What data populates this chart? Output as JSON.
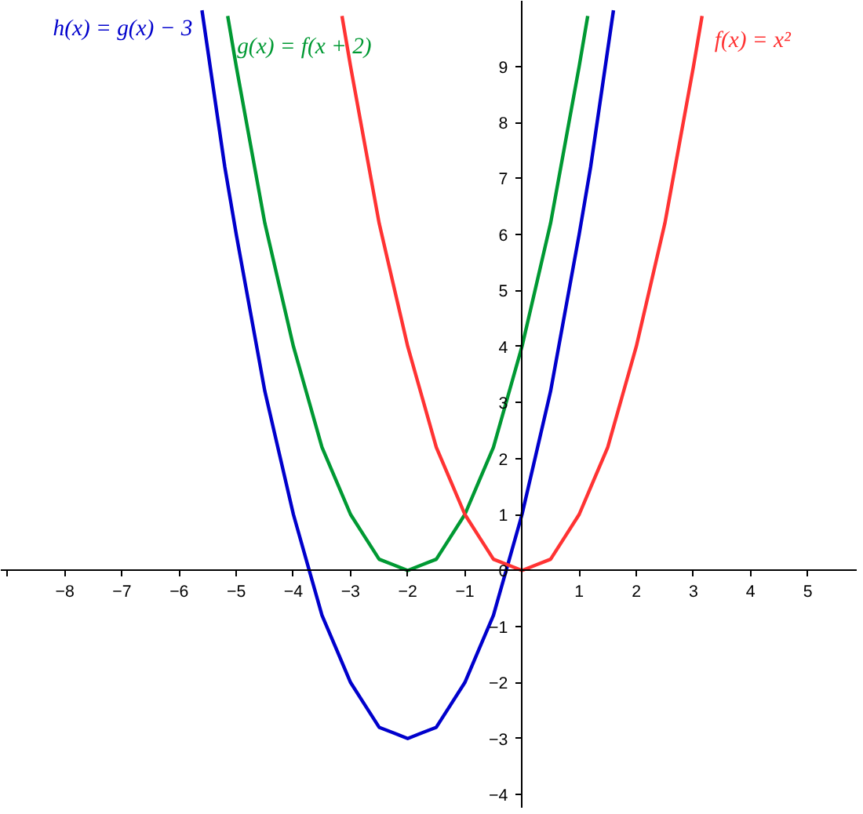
{
  "chart_data": {
    "type": "line",
    "xlim": [
      -9.12,
      5.87
    ],
    "ylim": [
      -4.25,
      10.17
    ],
    "xticks": [
      {
        "value": -9,
        "label": null
      },
      -8,
      -7,
      -6,
      -5,
      -4,
      -3,
      -2,
      -1,
      1,
      2,
      3,
      4,
      5
    ],
    "yticks": [
      -4,
      -3,
      -2,
      -1,
      0,
      1,
      2,
      3,
      4,
      5,
      6,
      7,
      8,
      9
    ],
    "grid": false,
    "marker": "none",
    "line_style": "solid",
    "series": [
      {
        "name": "h(x) = g(x) − 3",
        "color": "#0000cc",
        "x": [
          -5.6,
          -5.4,
          -5.2,
          -5,
          -4.75,
          -4.5,
          -4.25,
          -4,
          -3.75,
          -3.5,
          -3.25,
          -3,
          -2.75,
          -2.5,
          -2.25,
          -2,
          -1.75,
          -1.5,
          -1.25,
          -1,
          -0.75,
          -0.5,
          -0.25,
          0,
          0.25,
          0.5,
          0.75,
          1,
          1.2,
          1.4,
          1.6
        ],
        "values": [
          10,
          8.6,
          7.2,
          6,
          4.6,
          3.2,
          2.1,
          1,
          0.1,
          -0.8,
          -1.4,
          -2,
          -2.4,
          -2.8,
          -2.9,
          -3,
          -2.9,
          -2.8,
          -2.4,
          -2,
          -1.4,
          -0.8,
          0.1,
          1,
          2.1,
          3.2,
          4.6,
          6,
          7.2,
          8.6,
          10
        ]
      },
      {
        "name": "g(x) = f(x + 2)",
        "color": "#009933",
        "x": [
          -5.15,
          -5,
          -4.75,
          -4.5,
          -4.25,
          -4,
          -3.75,
          -3.5,
          -3.25,
          -3,
          -2.75,
          -2.5,
          -2.25,
          -2,
          -1.75,
          -1.5,
          -1.25,
          -1,
          -0.75,
          -0.5,
          -0.25,
          0,
          0.25,
          0.5,
          0.75,
          1,
          1.15
        ],
        "values": [
          9.9,
          9,
          7.6,
          6.2,
          5.1,
          4,
          3.1,
          2.2,
          1.6,
          1,
          0.6,
          0.2,
          0.1,
          0,
          0.1,
          0.2,
          0.6,
          1,
          1.6,
          2.2,
          3.1,
          4,
          5.1,
          6.2,
          7.6,
          9,
          9.9
        ]
      },
      {
        "name": "f(x) = x²",
        "color": "#ff3333",
        "x": [
          -3.15,
          -3,
          -2.75,
          -2.5,
          -2.25,
          -2,
          -1.75,
          -1.5,
          -1.25,
          -1,
          -0.75,
          -0.5,
          -0.25,
          0,
          0.25,
          0.5,
          0.75,
          1,
          1.25,
          1.5,
          1.75,
          2,
          2.25,
          2.5,
          2.75,
          3,
          3.15
        ],
        "values": [
          9.9,
          9,
          7.6,
          6.2,
          5.1,
          4,
          3.1,
          2.2,
          1.6,
          1,
          0.6,
          0.2,
          0.1,
          0,
          0.1,
          0.2,
          0.6,
          1,
          1.6,
          2.2,
          3.1,
          4,
          5.1,
          6.2,
          7.6,
          9,
          9.9
        ]
      }
    ]
  }
}
